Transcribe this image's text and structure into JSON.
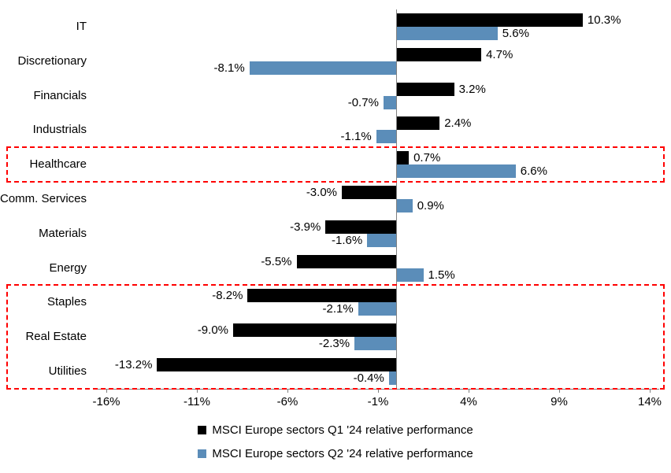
{
  "chart_data": {
    "type": "bar",
    "orientation": "horizontal",
    "title": "",
    "categories": [
      "IT",
      "Discretionary",
      "Financials",
      "Industrials",
      "Healthcare",
      "Comm. Services",
      "Materials",
      "Energy",
      "Staples",
      "Real Estate",
      "Utilities"
    ],
    "series": [
      {
        "name": "MSCI Europe sectors Q1 '24 relative performance",
        "color": "#000000",
        "values": [
          10.3,
          4.7,
          3.2,
          2.4,
          0.7,
          -3.0,
          -3.9,
          -5.5,
          -8.2,
          -9.0,
          -13.2
        ],
        "labels": [
          "10.3%",
          "4.7%",
          "3.2%",
          "2.4%",
          "0.7%",
          "-3.0%",
          "-3.9%",
          "-5.5%",
          "-8.2%",
          "-9.0%",
          "-13.2%"
        ]
      },
      {
        "name": "MSCI Europe sectors Q2 '24 relative performance",
        "color": "#5B8DB9",
        "values": [
          5.6,
          -8.1,
          -0.7,
          -1.1,
          6.6,
          0.9,
          -1.6,
          1.5,
          -2.1,
          -2.3,
          -0.4
        ],
        "labels": [
          "5.6%",
          "-8.1%",
          "-0.7%",
          "-1.1%",
          "6.6%",
          "0.9%",
          "-1.6%",
          "1.5%",
          "-2.1%",
          "-2.3%",
          "-0.4%"
        ]
      }
    ],
    "x_ticks": [
      "-16%",
      "-11%",
      "-6%",
      "-1%",
      "4%",
      "9%",
      "14%"
    ],
    "x_tick_values": [
      -16,
      -11,
      -6,
      -1,
      4,
      9,
      14
    ],
    "xlim": [
      -16.5,
      14.5
    ],
    "grid": false,
    "legend_position": "bottom",
    "highlight_color": "#FF0000",
    "highlight_boxes": [
      {
        "start_row": 4,
        "end_row": 4
      },
      {
        "start_row": 8,
        "end_row": 10
      }
    ]
  }
}
